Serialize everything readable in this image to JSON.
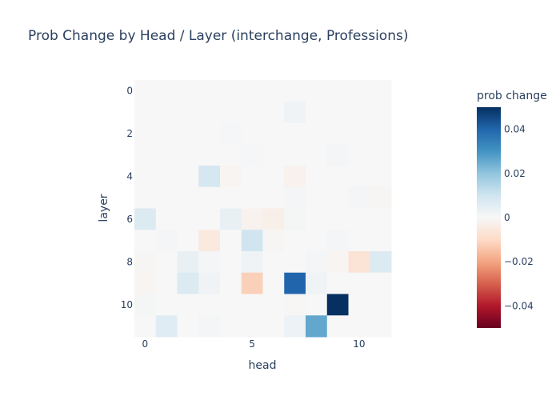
{
  "chart_data": {
    "type": "heatmap",
    "title": "Prob Change by Head / Layer (interchange, Professions)",
    "xlabel": "head",
    "ylabel": "layer",
    "x_tick_labels": [
      "0",
      "5",
      "10"
    ],
    "x_tick_values": [
      0,
      5,
      10
    ],
    "y_tick_labels": [
      "0",
      "2",
      "4",
      "6",
      "8",
      "10"
    ],
    "y_tick_values": [
      0,
      2,
      4,
      6,
      8,
      10
    ],
    "heads": [
      0,
      1,
      2,
      3,
      4,
      5,
      6,
      7,
      8,
      9,
      10,
      11
    ],
    "layers": [
      0,
      1,
      2,
      3,
      4,
      5,
      6,
      7,
      8,
      9,
      10,
      11
    ],
    "zmin": -0.05,
    "zmax": 0.05,
    "colorscale": "RdBu",
    "colorbar": {
      "title": "prob change",
      "tick_values": [
        0.04,
        0.02,
        0,
        -0.02,
        -0.04
      ],
      "tick_labels": [
        "0.04",
        "0.02",
        "0",
        "−0.02",
        "−0.04"
      ]
    },
    "z": [
      [
        0,
        0,
        0,
        0,
        0,
        0,
        0,
        0,
        0,
        0,
        0,
        0
      ],
      [
        0,
        0,
        0,
        0,
        0,
        0,
        0,
        0.002,
        0,
        0,
        0,
        0
      ],
      [
        0,
        0,
        0,
        0,
        0.0005,
        0,
        0,
        0,
        0,
        0,
        0,
        0
      ],
      [
        0,
        0,
        0,
        0,
        0,
        0.0005,
        0,
        0,
        0,
        0.001,
        0,
        0
      ],
      [
        0,
        0,
        0,
        0.009,
        -0.001,
        0,
        0,
        -0.002,
        0,
        0,
        0,
        0
      ],
      [
        0,
        0,
        0,
        0,
        0,
        0,
        0,
        0.001,
        0,
        0,
        0.001,
        -0.0008
      ],
      [
        0.007,
        0,
        0,
        0,
        0.004,
        -0.002,
        -0.003,
        0.0008,
        0,
        0,
        0,
        0
      ],
      [
        0,
        0.001,
        0,
        -0.005,
        0,
        0.01,
        -0.0008,
        0,
        0,
        0.001,
        0,
        0
      ],
      [
        -0.0008,
        0,
        0.004,
        0.001,
        0,
        0.002,
        0,
        0,
        0.001,
        -0.001,
        -0.007,
        0.007
      ],
      [
        -0.001,
        0,
        0.007,
        0.002,
        0,
        -0.012,
        0,
        0.04,
        0.002,
        0,
        0,
        0
      ],
      [
        0.0008,
        0,
        0,
        0,
        0,
        0,
        0,
        -0.0005,
        0,
        0.05,
        0,
        0
      ],
      [
        0,
        0.006,
        0,
        0.001,
        0,
        0,
        0,
        0.003,
        0.026,
        0,
        0,
        0
      ]
    ]
  }
}
